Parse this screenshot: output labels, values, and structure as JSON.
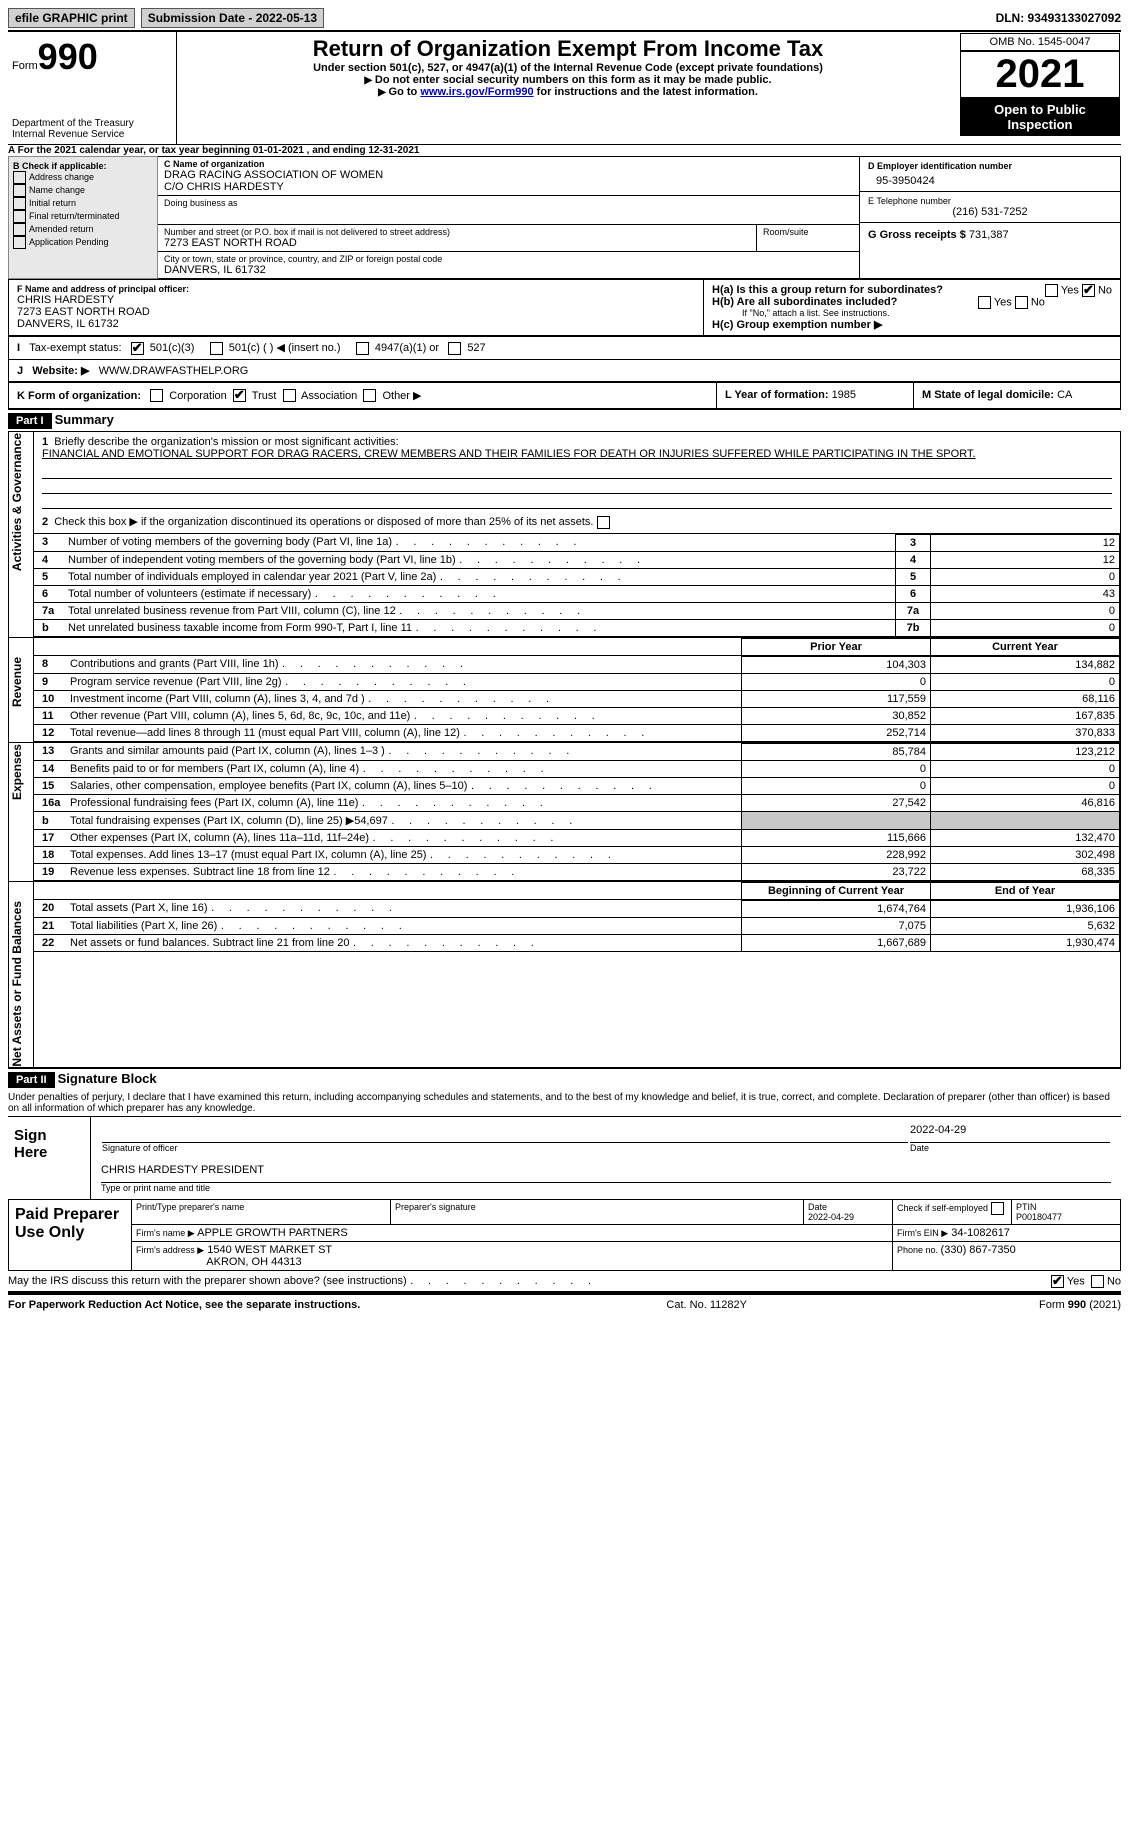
{
  "topbar": {
    "efile_label": "efile GRAPHIC print",
    "submission_label": "Submission Date - 2022-05-13",
    "dln_label": "DLN: 93493133027092"
  },
  "header": {
    "form_prefix": "Form",
    "form_number": "990",
    "dept": "Department of the Treasury",
    "irs": "Internal Revenue Service",
    "title": "Return of Organization Exempt From Income Tax",
    "subtitle": "Under section 501(c), 527, or 4947(a)(1) of the Internal Revenue Code (except private foundations)",
    "note1": "Do not enter social security numbers on this form as it may be made public.",
    "note2_pre": "Go to ",
    "note2_link": "www.irs.gov/Form990",
    "note2_post": " for instructions and the latest information.",
    "omb": "OMB No. 1545-0047",
    "year": "2021",
    "open": "Open to Public Inspection"
  },
  "section_a": {
    "a_label": "A For the 2021 calendar year, or tax year beginning ",
    "a_begin": "01-01-2021",
    "a_mid": "   , and ending ",
    "a_end": "12-31-2021",
    "b_label": "B Check if applicable:",
    "b_items": [
      "Address change",
      "Name change",
      "Initial return",
      "Final return/terminated",
      "Amended return",
      "Application Pending"
    ],
    "c_name_label": "C Name of organization",
    "c_name": "DRAG RACING ASSOCIATION OF WOMEN",
    "c_name2": "C/O CHRIS HARDESTY",
    "dba_label": "Doing business as",
    "c_addr_label": "Number and street (or P.O. box if mail is not delivered to street address)",
    "room_label": "Room/suite",
    "c_addr": "7273 EAST NORTH ROAD",
    "c_city_label": "City or town, state or province, country, and ZIP or foreign postal code",
    "c_city": "DANVERS, IL  61732",
    "d_label": "D Employer identification number",
    "d_ein": "95-3950424",
    "e_label": "E Telephone number",
    "e_phone": "(216) 531-7252",
    "g_label": "G Gross receipts $ ",
    "g_amount": "731,387",
    "f_label": "F  Name and address of principal officer:",
    "f_name": "CHRIS HARDESTY",
    "f_addr": "7273 EAST NORTH ROAD",
    "f_city": "DANVERS, IL  61732",
    "ha_label": "H(a)  Is this a group return for subordinates?",
    "hb_label": "H(b)  Are all subordinates included?",
    "hb_note": "If \"No,\" attach a list. See instructions.",
    "hc_label": "H(c)  Group exemption number ▶",
    "yes": "Yes",
    "no": "No",
    "i_label": "Tax-exempt status:",
    "i_501c3": "501(c)(3)",
    "i_501c": "501(c) (   ) ◀ (insert no.)",
    "i_4947": "4947(a)(1) or",
    "i_527": "527",
    "j_label": "Website: ▶",
    "j_url": "WWW.DRAWFASTHELP.ORG",
    "k_label": "K Form of organization:",
    "k_items": [
      "Corporation",
      "Trust",
      "Association",
      "Other ▶"
    ],
    "l_label": "L Year of formation: ",
    "l_year": "1985",
    "m_label": "M State of legal domicile: ",
    "m_state": "CA"
  },
  "part1": {
    "bar": "Part I",
    "title": "Summary",
    "side_ag": "Activities & Governance",
    "side_rev": "Revenue",
    "side_exp": "Expenses",
    "side_net": "Net Assets or Fund Balances",
    "line1_label": "Briefly describe the organization's mission or most significant activities:",
    "line1_text": "FINANCIAL AND EMOTIONAL SUPPORT FOR DRAG RACERS, CREW MEMBERS AND THEIR FAMILIES FOR DEATH OR INJURIES SUFFERED WHILE PARTICIPATING IN THE SPORT.",
    "line2": "Check this box ▶     if the organization discontinued its operations or disposed of more than 25% of its net assets.",
    "rows_ag": [
      {
        "num": "3",
        "label": "Number of voting members of the governing body (Part VI, line 1a)",
        "box": "3",
        "val": "12"
      },
      {
        "num": "4",
        "label": "Number of independent voting members of the governing body (Part VI, line 1b)",
        "box": "4",
        "val": "12"
      },
      {
        "num": "5",
        "label": "Total number of individuals employed in calendar year 2021 (Part V, line 2a)",
        "box": "5",
        "val": "0"
      },
      {
        "num": "6",
        "label": "Total number of volunteers (estimate if necessary)",
        "box": "6",
        "val": "43"
      },
      {
        "num": "7a",
        "label": "Total unrelated business revenue from Part VIII, column (C), line 12",
        "box": "7a",
        "val": "0"
      },
      {
        "num": "b",
        "label": "Net unrelated business taxable income from Form 990-T, Part I, line 11",
        "box": "7b",
        "val": "0"
      }
    ],
    "col_prior": "Prior Year",
    "col_curr": "Current Year",
    "rows_rev": [
      {
        "num": "8",
        "label": "Contributions and grants (Part VIII, line 1h)",
        "prior": "104,303",
        "curr": "134,882"
      },
      {
        "num": "9",
        "label": "Program service revenue (Part VIII, line 2g)",
        "prior": "0",
        "curr": "0"
      },
      {
        "num": "10",
        "label": "Investment income (Part VIII, column (A), lines 3, 4, and 7d )",
        "prior": "117,559",
        "curr": "68,116"
      },
      {
        "num": "11",
        "label": "Other revenue (Part VIII, column (A), lines 5, 6d, 8c, 9c, 10c, and 11e)",
        "prior": "30,852",
        "curr": "167,835"
      },
      {
        "num": "12",
        "label": "Total revenue—add lines 8 through 11 (must equal Part VIII, column (A), line 12)",
        "prior": "252,714",
        "curr": "370,833"
      }
    ],
    "rows_exp": [
      {
        "num": "13",
        "label": "Grants and similar amounts paid (Part IX, column (A), lines 1–3 )",
        "prior": "85,784",
        "curr": "123,212"
      },
      {
        "num": "14",
        "label": "Benefits paid to or for members (Part IX, column (A), line 4)",
        "prior": "0",
        "curr": "0"
      },
      {
        "num": "15",
        "label": "Salaries, other compensation, employee benefits (Part IX, column (A), lines 5–10)",
        "prior": "0",
        "curr": "0"
      },
      {
        "num": "16a",
        "label": "Professional fundraising fees (Part IX, column (A), line 11e)",
        "prior": "27,542",
        "curr": "46,816"
      },
      {
        "num": "b",
        "label": "Total fundraising expenses (Part IX, column (D), line 25) ▶54,697",
        "prior": "",
        "curr": "",
        "gray": true
      },
      {
        "num": "17",
        "label": "Other expenses (Part IX, column (A), lines 11a–11d, 11f–24e)",
        "prior": "115,666",
        "curr": "132,470"
      },
      {
        "num": "18",
        "label": "Total expenses. Add lines 13–17 (must equal Part IX, column (A), line 25)",
        "prior": "228,992",
        "curr": "302,498"
      },
      {
        "num": "19",
        "label": "Revenue less expenses. Subtract line 18 from line 12",
        "prior": "23,722",
        "curr": "68,335"
      }
    ],
    "col_begin": "Beginning of Current Year",
    "col_end": "End of Year",
    "rows_net": [
      {
        "num": "20",
        "label": "Total assets (Part X, line 16)",
        "prior": "1,674,764",
        "curr": "1,936,106"
      },
      {
        "num": "21",
        "label": "Total liabilities (Part X, line 26)",
        "prior": "7,075",
        "curr": "5,632"
      },
      {
        "num": "22",
        "label": "Net assets or fund balances. Subtract line 21 from line 20",
        "prior": "1,667,689",
        "curr": "1,930,474"
      }
    ]
  },
  "part2": {
    "bar": "Part II",
    "title": "Signature Block",
    "perjury": "Under penalties of perjury, I declare that I have examined this return, including accompanying schedules and statements, and to the best of my knowledge and belief, it is true, correct, and complete. Declaration of preparer (other than officer) is based on all information of which preparer has any knowledge.",
    "sign_here": "Sign Here",
    "sig_officer": "Signature of officer",
    "sig_date": "2022-04-29",
    "sig_name": "CHRIS HARDESTY PRESIDENT",
    "sig_name_label": "Type or print name and title",
    "paid": "Paid Preparer Use Only",
    "prep_name_label": "Print/Type preparer's name",
    "prep_sig_label": "Preparer's signature",
    "date_label": "Date",
    "date_val": "2022-04-29",
    "check_label": "Check         if self-employed",
    "ptin_label": "PTIN",
    "ptin": "P00180477",
    "firm_name_label": "Firm's name     ▶",
    "firm_name": "APPLE GROWTH PARTNERS",
    "firm_ein_label": "Firm's EIN ▶",
    "firm_ein": "34-1082617",
    "firm_addr_label": "Firm's address ▶",
    "firm_addr": "1540 WEST MARKET ST",
    "firm_city": "AKRON, OH  44313",
    "phone_label": "Phone no. ",
    "phone": "(330) 867-7350",
    "discuss": "May the IRS discuss this return with the preparer shown above? (see instructions)",
    "paperwork": "For Paperwork Reduction Act Notice, see the separate instructions.",
    "catno": "Cat. No. 11282Y",
    "formref": "Form 990 (2021)"
  }
}
